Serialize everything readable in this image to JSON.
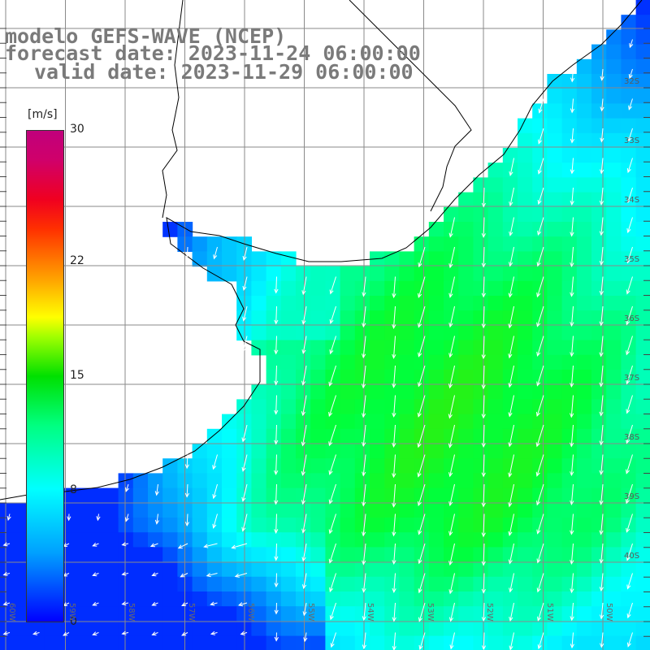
{
  "title": {
    "model": "modelo GEFS-WAVE (NCEP)",
    "forecast": "forecast date: 2023-11-24 06:00:00",
    "valid": "valid date: 2023-11-29 06:00:00"
  },
  "colorbar": {
    "unit": "[m/s]",
    "ticks": [
      {
        "value": 30,
        "label": "30"
      },
      {
        "value": 22,
        "label": "22"
      },
      {
        "value": 15,
        "label": "15"
      },
      {
        "value": 8,
        "label": "8"
      },
      {
        "value": 0,
        "label": "0"
      }
    ],
    "min": 0,
    "max": 30
  },
  "map": {
    "lat_labels": [
      "32S",
      "33S",
      "34S",
      "35S",
      "36S",
      "37S",
      "38S",
      "39S",
      "40S"
    ],
    "lon_labels": [
      "60W",
      "59W",
      "58W",
      "57W",
      "56W",
      "55W",
      "54W",
      "53W",
      "52W",
      "51W",
      "50W"
    ],
    "land_color": "#ffffff",
    "grid_color": "#8a8a8a",
    "coast_color": "#000000",
    "arrow_color": "#ffffff",
    "wind_direction": "from north-northeast"
  }
}
